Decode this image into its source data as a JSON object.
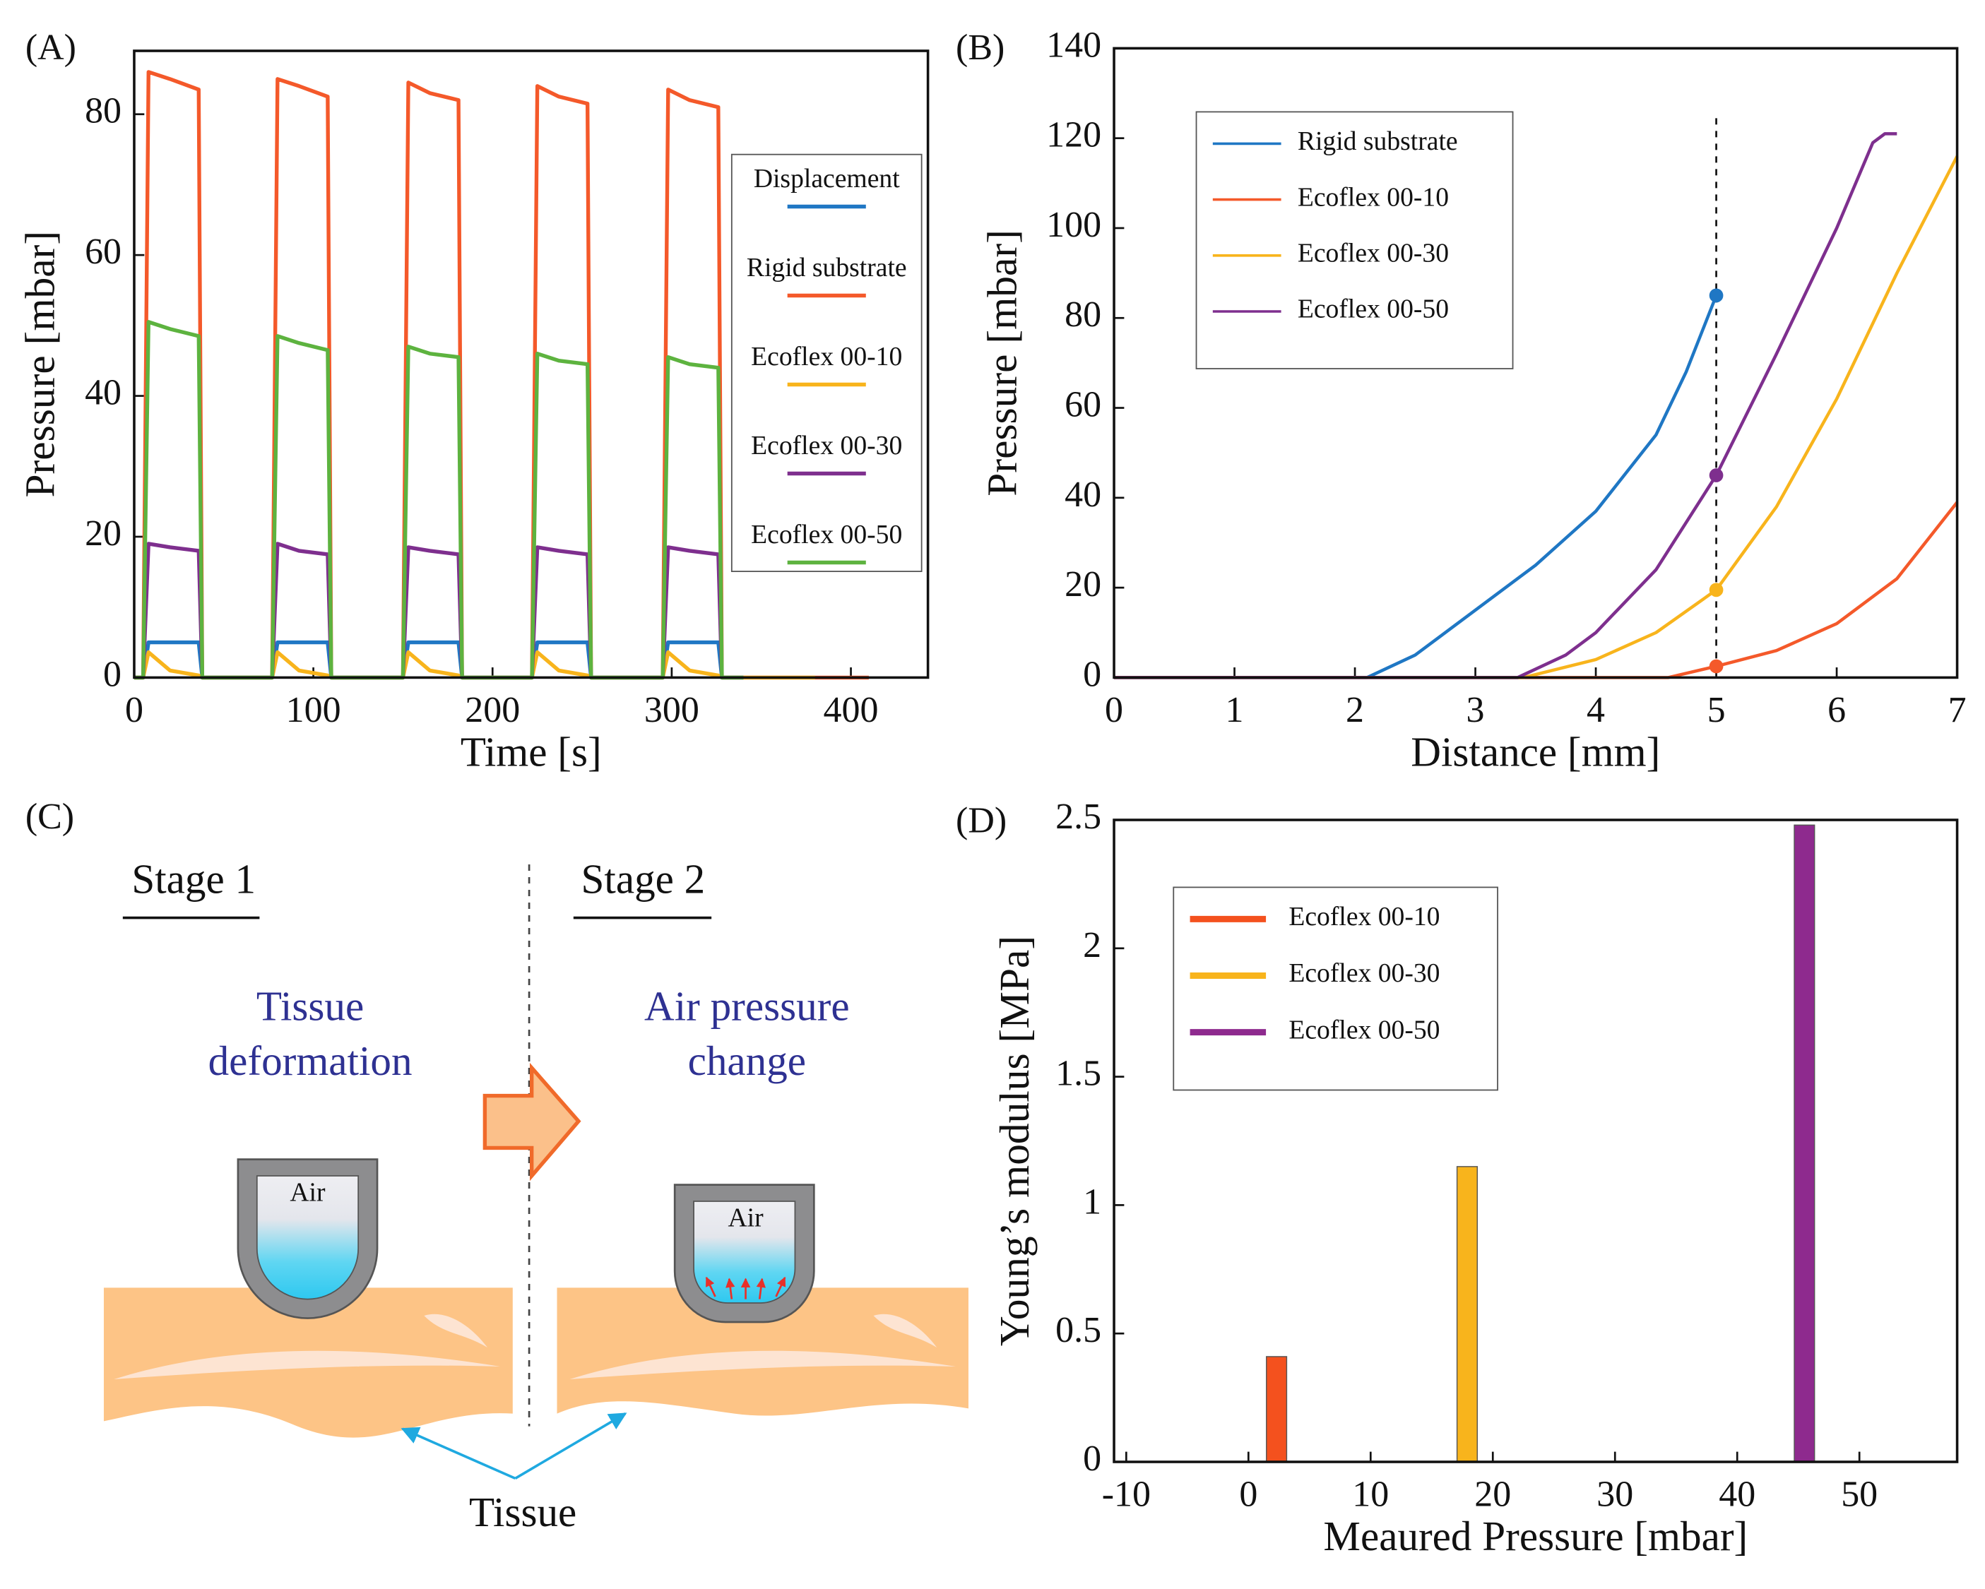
{
  "chart_data": [
    {
      "type": "line",
      "panel_label": "(A)",
      "x_label": "Time [s]",
      "y_label": "Pressure [mbar]",
      "xlim": [
        0,
        443
      ],
      "ylim": [
        0,
        89
      ],
      "xticks": [
        0,
        100,
        200,
        300,
        400
      ],
      "yticks": [
        0,
        20,
        40,
        60,
        80
      ],
      "legend": "right",
      "x": [
        0,
        5,
        8,
        20,
        36,
        38,
        77,
        80,
        92,
        108,
        110,
        150,
        153,
        165,
        181,
        183,
        222,
        225,
        237,
        253,
        255,
        295,
        298,
        310,
        326,
        328,
        340,
        380,
        410
      ],
      "series": [
        {
          "name": "Displacement",
          "color": "#1f77c4",
          "values": [
            0,
            0,
            5,
            5,
            5,
            0,
            0,
            5,
            5,
            5,
            0,
            0,
            5,
            5,
            5,
            0,
            0,
            5,
            5,
            5,
            0,
            0,
            5,
            5,
            5,
            0,
            0,
            null,
            null
          ]
        },
        {
          "name": "Rigid substrate",
          "color": "#f4592a",
          "values": [
            0,
            0,
            86,
            85,
            83.5,
            0,
            0,
            85,
            84,
            82.5,
            0,
            0,
            84.5,
            83,
            82,
            0,
            0,
            84,
            82.5,
            81.5,
            0,
            0,
            83.5,
            82,
            81,
            0,
            0,
            0,
            0
          ]
        },
        {
          "name": "Ecoflex 00-10",
          "color": "#f8b41c",
          "values": [
            0,
            0,
            3.6,
            1,
            0.3,
            0,
            0,
            3.6,
            1,
            0.3,
            0,
            0,
            3.6,
            1,
            0.3,
            0,
            0,
            3.6,
            1,
            0.3,
            0,
            0,
            3.6,
            1,
            0.3,
            0,
            0,
            0,
            null
          ]
        },
        {
          "name": "Ecoflex 00-30",
          "color": "#7e2f8e",
          "values": [
            0,
            0,
            19,
            18.5,
            18,
            0,
            0,
            19,
            18,
            17.5,
            0,
            0,
            18.5,
            18,
            17.5,
            0,
            0,
            18.5,
            18,
            17.5,
            0,
            0,
            18.5,
            18,
            17.5,
            0,
            0,
            null,
            null
          ]
        },
        {
          "name": "Ecoflex 00-50",
          "color": "#5db33f",
          "values": [
            0,
            0,
            50.5,
            49.5,
            48.5,
            0,
            0,
            48.5,
            47.5,
            46.5,
            0,
            0,
            47,
            46,
            45.5,
            0,
            0,
            46,
            45,
            44.5,
            0,
            0,
            45.5,
            44.5,
            44,
            0,
            0,
            null,
            null
          ]
        }
      ]
    },
    {
      "type": "line",
      "panel_label": "(B)",
      "x_label": "Distance [mm]",
      "y_label": "Pressure [mbar]",
      "xlim": [
        0,
        7
      ],
      "ylim": [
        0,
        140
      ],
      "xticks": [
        0,
        1,
        2,
        3,
        4,
        5,
        6,
        7
      ],
      "yticks": [
        0,
        20,
        40,
        60,
        80,
        100,
        120,
        140
      ],
      "legend": "upper left",
      "vline": 5,
      "series": [
        {
          "name": "Rigid substrate",
          "color": "#1f77c4",
          "x": [
            0,
            2.1,
            2.5,
            3,
            3.5,
            4,
            4.5,
            4.75,
            5
          ],
          "values": [
            0,
            0,
            5,
            15,
            25,
            37,
            54,
            68,
            85
          ]
        },
        {
          "name": "Ecoflex 00-10",
          "color": "#f4592a",
          "x": [
            0,
            4.6,
            5,
            5.5,
            6,
            6.5,
            7
          ],
          "values": [
            0,
            0,
            2.5,
            6,
            12,
            22,
            39
          ]
        },
        {
          "name": "Ecoflex 00-30",
          "color": "#f8b41c",
          "x": [
            0,
            3.4,
            4,
            4.5,
            5,
            5.5,
            6,
            6.5,
            7
          ],
          "values": [
            0,
            0,
            4,
            10,
            19.5,
            38,
            62,
            90,
            116
          ]
        },
        {
          "name": "Ecoflex 00-50",
          "color": "#7e2f8e",
          "x": [
            0,
            3.35,
            3.75,
            4,
            4.5,
            5,
            5.5,
            6,
            6.3,
            6.4,
            6.5
          ],
          "values": [
            0,
            0,
            5,
            10,
            24,
            45,
            72,
            100,
            119,
            121,
            121
          ]
        }
      ]
    },
    {
      "type": "bar",
      "panel_label": "(D)",
      "x_label": "Meaured Pressure [mbar]",
      "y_label": "Young’s modulus [MPa]",
      "xlim": [
        -11,
        58
      ],
      "ylim": [
        0,
        2.5
      ],
      "xticks": [
        -10,
        0,
        10,
        20,
        30,
        40,
        50
      ],
      "yticks": [
        0,
        0.5,
        1,
        1.5,
        2,
        2.5
      ],
      "legend": "upper left",
      "series": [
        {
          "name": "Ecoflex 00-10",
          "color": "#f4511e",
          "x": [
            2.3
          ],
          "values": [
            0.41
          ]
        },
        {
          "name": "Ecoflex 00-30",
          "color": "#f8b41c",
          "x": [
            17.9
          ],
          "values": [
            1.15
          ]
        },
        {
          "name": "Ecoflex 00-50",
          "color": "#8e2a8e",
          "x": [
            45.5
          ],
          "values": [
            2.48
          ]
        }
      ]
    }
  ],
  "panel_c": {
    "panel_label": "(C)",
    "stage_1": "Stage 1",
    "stage_2": "Stage 2",
    "stage_1_text": [
      "Tissue",
      "deformation"
    ],
    "stage_2_text": [
      "Air pressure",
      "change"
    ],
    "air_1": "Air",
    "air_2": "Air",
    "tissue": "Tissue"
  }
}
